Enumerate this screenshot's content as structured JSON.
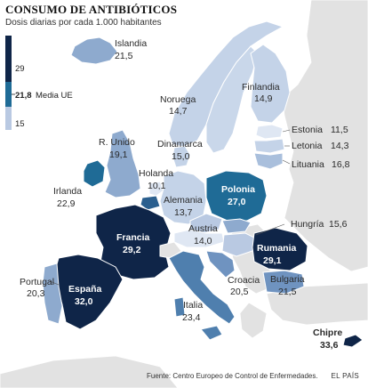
{
  "title": "CONSUMO DE ANTIBIÓTICOS",
  "subtitle": "Dosis diarias por cada 1.000 habitantes",
  "legend": {
    "max": "29",
    "mid_value": "21,8",
    "mid_label": "Media UE",
    "min": "15"
  },
  "colors": {
    "land_other": "#e2e2e2",
    "sea": "#ffffff",
    "scale_low": "#b9c9e2",
    "scale_mid": "#1f6b96",
    "scale_high": "#0f2548"
  },
  "countries": [
    {
      "id": "islandia",
      "name": "Islandia",
      "value": "21,5"
    },
    {
      "id": "noruega",
      "name": "Noruega",
      "value": "14,7"
    },
    {
      "id": "finlandia",
      "name": "Finlandia",
      "value": "14,9"
    },
    {
      "id": "estonia",
      "name": "Estonia",
      "value": "11,5"
    },
    {
      "id": "letonia",
      "name": "Letonia",
      "value": "14,3"
    },
    {
      "id": "lituania",
      "name": "Lituania",
      "value": "16,8"
    },
    {
      "id": "reino_unido",
      "name": "R. Unido",
      "value": "19,1"
    },
    {
      "id": "dinamarca",
      "name": "Dinamarca",
      "value": "15,0"
    },
    {
      "id": "irlanda",
      "name": "Irlanda",
      "value": "22,9"
    },
    {
      "id": "holanda",
      "name": "Holanda",
      "value": "10,1"
    },
    {
      "id": "alemania",
      "name": "Alemania",
      "value": "13,7"
    },
    {
      "id": "polonia",
      "name": "Polonia",
      "value": "27,0"
    },
    {
      "id": "francia",
      "name": "Francia",
      "value": "29,2"
    },
    {
      "id": "austria",
      "name": "Austria",
      "value": "14,0"
    },
    {
      "id": "hungria",
      "name": "Hungría",
      "value": "15,6"
    },
    {
      "id": "rumania",
      "name": "Rumania",
      "value": "29,1"
    },
    {
      "id": "croacia",
      "name": "Croacia",
      "value": "20,5"
    },
    {
      "id": "bulgaria",
      "name": "Bulgaria",
      "value": "21,5"
    },
    {
      "id": "portugal",
      "name": "Portugal",
      "value": "20,3"
    },
    {
      "id": "espana",
      "name": "España",
      "value": "32,0"
    },
    {
      "id": "italia",
      "name": "Italia",
      "value": "23,4"
    },
    {
      "id": "chipre",
      "name": "Chipre",
      "value": "33,6"
    }
  ],
  "source": "Fuente: Centro Europeo de Control de Enfermedades.",
  "credit": "EL PAÍS"
}
